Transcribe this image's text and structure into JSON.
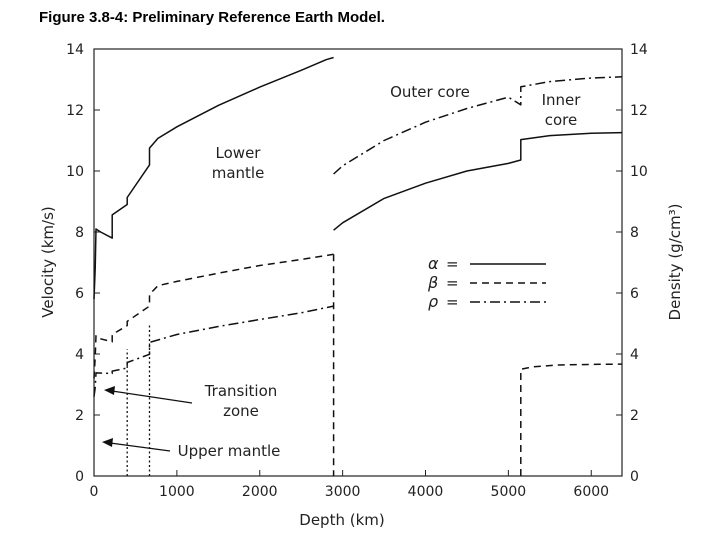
{
  "figure": {
    "title": "Figure 3.8-4: Preliminary Reference Earth Model."
  },
  "chart_data": {
    "type": "line",
    "title": "Figure 3.8-4: Preliminary Reference Earth Model.",
    "xlabel": "Depth (km)",
    "ylabel": "Velocity (km/s)",
    "y2label": "Density (g/cm³)",
    "xlim": [
      0,
      6371
    ],
    "ylim": [
      0,
      14
    ],
    "y2lim": [
      0,
      14
    ],
    "xticks": [
      "0",
      "1000",
      "2000",
      "3000",
      "4000",
      "5000",
      "6000"
    ],
    "yticks": [
      "0",
      "2",
      "4",
      "6",
      "8",
      "10",
      "12",
      "14"
    ],
    "y2ticks": [
      "0",
      "2",
      "4",
      "6",
      "8",
      "10",
      "12",
      "14"
    ],
    "grid": false,
    "legend": [
      {
        "symbol": "α",
        "eq": "=",
        "style": "solid"
      },
      {
        "symbol": "β",
        "eq": "=",
        "style": "dashed"
      },
      {
        "symbol": "ρ",
        "eq": "=",
        "style": "dashdot"
      }
    ],
    "annotations": {
      "lower_mantle": [
        "Lower",
        "mantle"
      ],
      "outer_core": "Outer core",
      "inner_core": [
        "Inner",
        "core"
      ],
      "transition_zone": [
        "Transition",
        "zone"
      ],
      "upper_mantle": "Upper mantle"
    },
    "series": [
      {
        "symbol": "α",
        "style": "solid",
        "segments": [
          {
            "x": [
              0,
              15,
              15,
              24,
              24,
              80,
              80,
              220,
              220,
              220,
              400,
              400,
              400,
              670,
              670,
              670,
              771,
              1000,
              1500,
              2000,
              2500,
              2800,
              2891
            ],
            "y": [
              5.8,
              6.8,
              6.8,
              8.1,
              8.1,
              8.0,
              8.0,
              7.8,
              7.8,
              8.56,
              8.9,
              8.9,
              9.13,
              10.2,
              10.2,
              10.75,
              11.07,
              11.45,
              12.15,
              12.75,
              13.3,
              13.65,
              13.72
            ]
          },
          {
            "x": [
              2891,
              3000,
              3500,
              4000,
              4500,
              5000,
              5150,
              5150,
              5500,
              6000,
              6371
            ],
            "y": [
              8.06,
              8.3,
              9.1,
              9.6,
              10.0,
              10.25,
              10.36,
              11.03,
              11.16,
              11.24,
              11.26
            ]
          }
        ]
      },
      {
        "symbol": "β",
        "style": "dashed",
        "segments": [
          {
            "x": [
              0,
              15,
              15,
              24,
              24,
              80,
              80,
              220,
              220,
              220,
              400,
              400,
              400,
              670,
              670,
              670,
              771,
              1000,
              1500,
              2000,
              2500,
              2891
            ],
            "y": [
              3.2,
              3.9,
              3.9,
              4.6,
              4.6,
              4.5,
              4.5,
              4.4,
              4.4,
              4.64,
              4.93,
              4.93,
              5.07,
              5.57,
              5.57,
              5.95,
              6.24,
              6.38,
              6.65,
              6.9,
              7.1,
              7.27
            ]
          },
          {
            "x": [
              2891,
              2891
            ],
            "y": [
              7.27,
              0
            ]
          },
          {
            "x": [
              5150,
              5150,
              5300,
              5600,
              6000,
              6371
            ],
            "y": [
              0,
              3.5,
              3.58,
              3.64,
              3.66,
              3.67
            ]
          }
        ]
      },
      {
        "symbol": "ρ",
        "style": "dashdot",
        "segments": [
          {
            "x": [
              0,
              15,
              15,
              24,
              24,
              220,
              220,
              400,
              400,
              670,
              670,
              1000,
              1500,
              2000,
              2500,
              2891
            ],
            "y": [
              2.6,
              2.9,
              2.9,
              3.38,
              3.38,
              3.36,
              3.44,
              3.54,
              3.72,
              3.99,
              4.38,
              4.64,
              4.9,
              5.13,
              5.35,
              5.57
            ]
          },
          {
            "x": [
              2891,
              3000,
              3500,
              4000,
              4500,
              5000,
              5150,
              5150,
              5500,
              6000,
              6371
            ],
            "y": [
              9.9,
              10.17,
              11.0,
              11.6,
              12.05,
              12.42,
              12.17,
              12.76,
              12.93,
              13.05,
              13.09
            ]
          }
        ]
      },
      {
        "symbol": "boundary",
        "style": "dotted",
        "segments": [
          {
            "x": [
              400,
              400
            ],
            "y": [
              0,
              4.15
            ]
          },
          {
            "x": [
              670,
              670
            ],
            "y": [
              0,
              5.0
            ]
          }
        ]
      }
    ]
  }
}
